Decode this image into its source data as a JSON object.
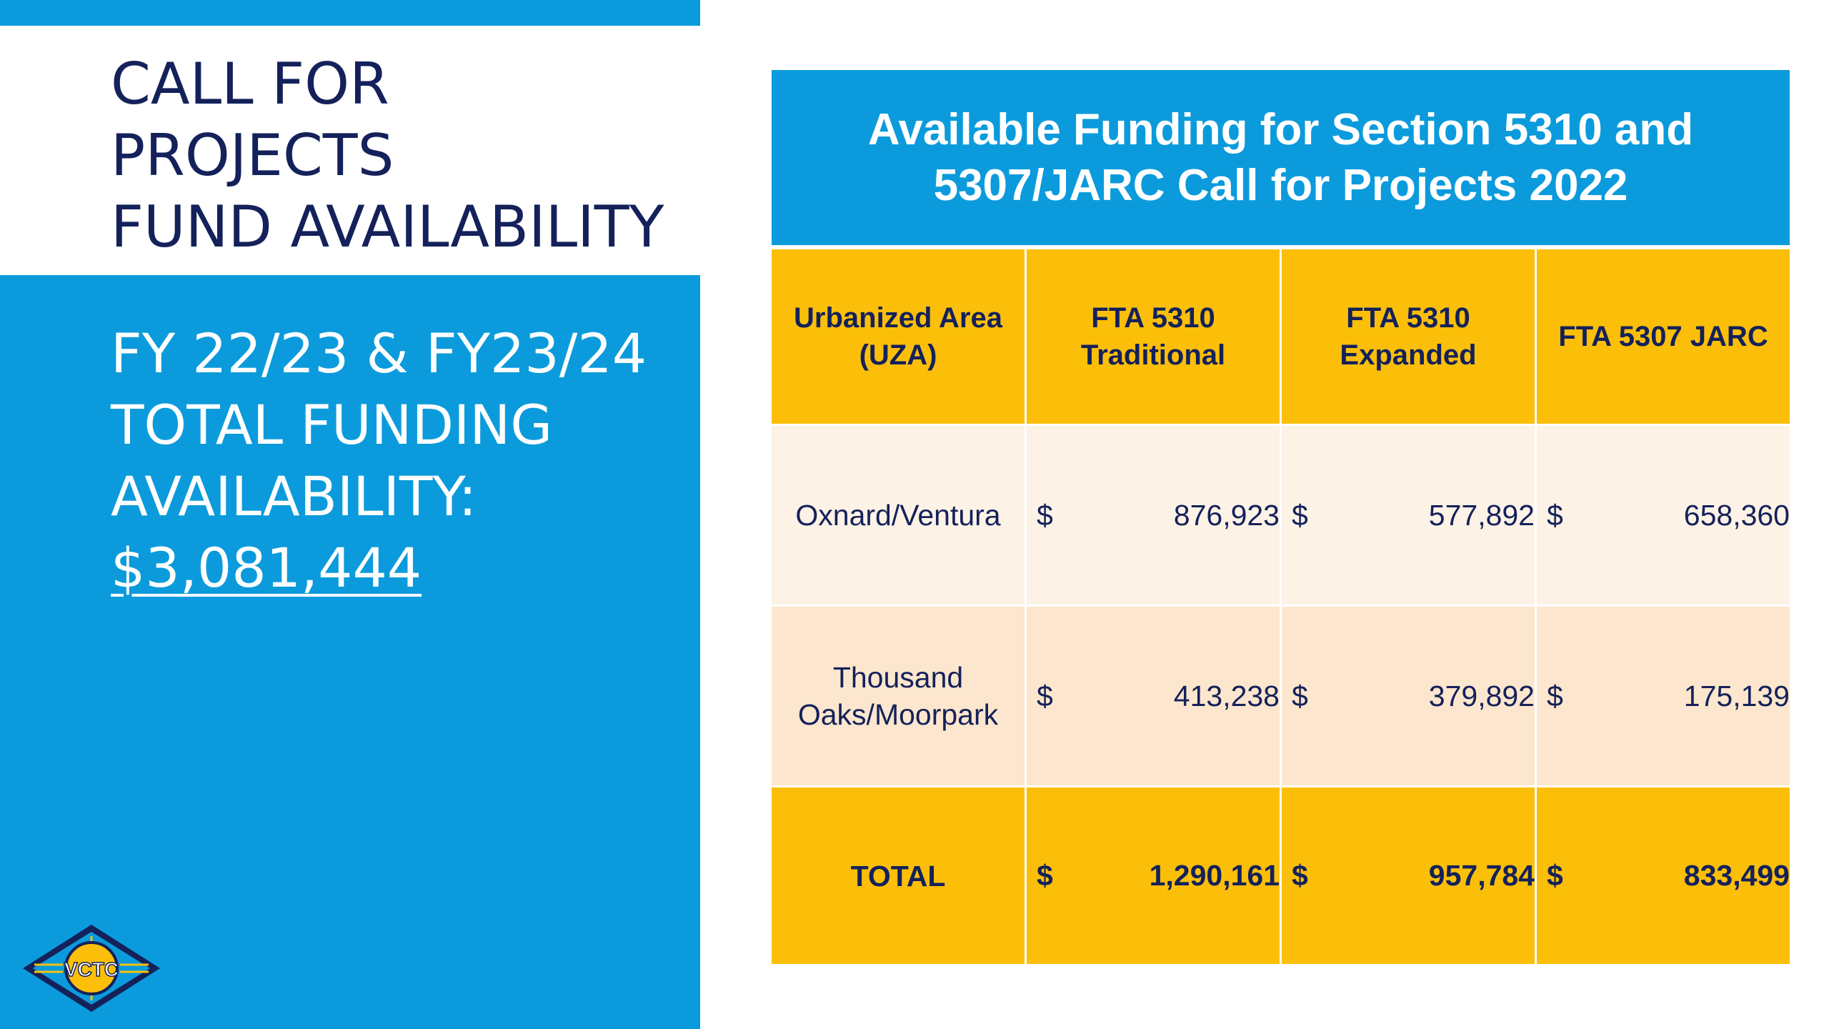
{
  "left": {
    "title_lines": [
      "CALL FOR",
      "PROJECTS",
      "FUND AVAILABILITY"
    ],
    "funding_lines": [
      "FY 22/23 & FY23/24",
      "TOTAL FUNDING",
      "AVAILABILITY:"
    ],
    "funding_amount": "$3,081,444",
    "logo_text": "VCTC"
  },
  "table": {
    "title_lines": [
      "Available Funding for Section 5310 and",
      "5307/JARC Call for Projects 2022"
    ],
    "columns": [
      [
        "Urbanized Area",
        "(UZA)"
      ],
      [
        "FTA 5310",
        "Traditional"
      ],
      [
        "FTA 5310",
        "Expanded"
      ],
      [
        "FTA 5307 JARC"
      ]
    ],
    "rows": [
      {
        "area": [
          "Oxnard/Ventura"
        ],
        "values": [
          {
            "currency": "$",
            "amount": "876,923"
          },
          {
            "currency": "$",
            "amount": "577,892"
          },
          {
            "currency": "$",
            "amount": "658,360"
          }
        ]
      },
      {
        "area": [
          "Thousand",
          "Oaks/Moorpark"
        ],
        "values": [
          {
            "currency": "$",
            "amount": "413,238"
          },
          {
            "currency": "$",
            "amount": "379,892"
          },
          {
            "currency": "$",
            "amount": "175,139"
          }
        ]
      }
    ],
    "total": {
      "label": "TOTAL",
      "values": [
        {
          "currency": "$",
          "amount": "1,290,161"
        },
        {
          "currency": "$",
          "amount": "957,784"
        },
        {
          "currency": "$",
          "amount": "833,499"
        }
      ]
    }
  },
  "colors": {
    "accent_blue": "#0b9bdc",
    "navy_text": "#14215a",
    "gold": "#fbbf0a",
    "row_light": "#fdf2e6",
    "row_peach": "#fce6cd"
  }
}
